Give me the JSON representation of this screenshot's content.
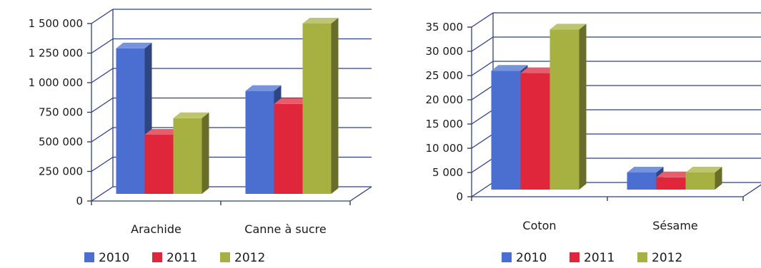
{
  "colors": {
    "2010": "#4a6fd0",
    "2011": "#e0263a",
    "2012": "#a7b142",
    "grid": "#2f3f8f"
  },
  "chart_data": [
    {
      "type": "bar",
      "categories": [
        "Arachide",
        "Canne à sucre"
      ],
      "series": [
        {
          "name": "2010",
          "values": [
            1290000,
            930000
          ]
        },
        {
          "name": "2011",
          "values": [
            560000,
            820000
          ]
        },
        {
          "name": "2012",
          "values": [
            700000,
            1500000
          ]
        }
      ],
      "ylim": [
        0,
        1500000
      ],
      "yticks": [
        0,
        250000,
        500000,
        750000,
        1000000,
        1250000,
        1500000
      ],
      "ytick_labels": [
        "0",
        "250 000",
        "500 000",
        "750 000",
        "1 000 000",
        "1 250 000",
        "1 500 000"
      ],
      "legend": [
        "2010",
        "2011",
        "2012"
      ],
      "legend_position": "bottom-left",
      "grid": true
    },
    {
      "type": "bar",
      "categories": [
        "Coton",
        "Sésame"
      ],
      "series": [
        {
          "name": "2010",
          "values": [
            26000,
            5000
          ]
        },
        {
          "name": "2011",
          "values": [
            25500,
            4000
          ]
        },
        {
          "name": "2012",
          "values": [
            34500,
            5000
          ]
        }
      ],
      "ylim": [
        0,
        35000
      ],
      "yticks": [
        0,
        5000,
        10000,
        15000,
        20000,
        25000,
        30000,
        35000
      ],
      "ytick_labels": [
        "0",
        "5 000",
        "10 000",
        "15 000",
        "20 000",
        "25 000",
        "30 000",
        "35 000"
      ],
      "legend": [
        "2010",
        "2011",
        "2012"
      ],
      "legend_position": "bottom-left",
      "grid": true
    }
  ]
}
